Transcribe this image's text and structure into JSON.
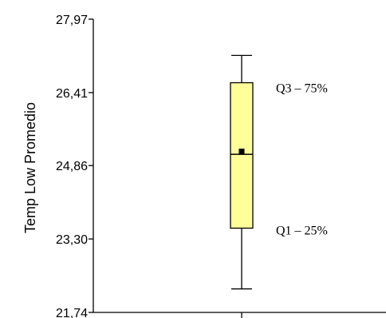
{
  "chart_data": {
    "type": "box",
    "title": "",
    "xlabel": "",
    "ylabel": "Temp Low  Promedio",
    "ylim": [
      21.74,
      27.97
    ],
    "yticks": [
      "27,97",
      "26,41",
      "24,86",
      "23,30",
      "21,74"
    ],
    "ytick_values": [
      27.97,
      26.41,
      24.86,
      23.3,
      21.74
    ],
    "box": {
      "min": 22.24,
      "q1": 23.53,
      "median": 25.1,
      "mean": 25.16,
      "q3": 26.62,
      "max": 27.2
    },
    "annotations": {
      "q3_label": "Q3 – 75%",
      "q1_label": "Q1 – 25%"
    },
    "colors": {
      "box_fill": "#ffff99",
      "stroke": "#000000"
    },
    "grid": false
  }
}
